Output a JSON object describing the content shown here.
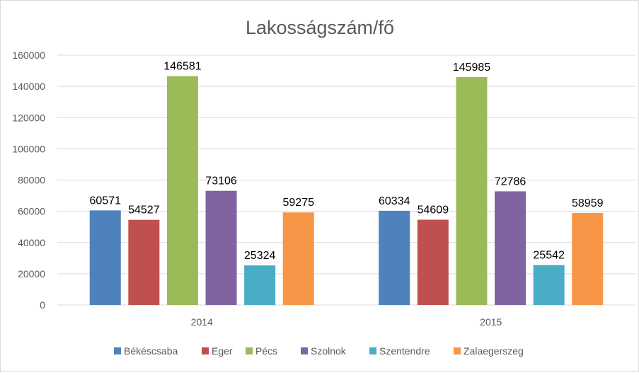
{
  "chart_data": {
    "type": "bar",
    "title": "Lakosságszám/fő",
    "xlabel": "",
    "ylabel": "",
    "categories": [
      "2014",
      "2015"
    ],
    "series": [
      {
        "name": "Békéscsaba",
        "color": "#4f81bd",
        "values": [
          60571,
          60334
        ]
      },
      {
        "name": "Eger",
        "color": "#c0504d",
        "values": [
          54527,
          54609
        ]
      },
      {
        "name": "Pécs",
        "color": "#9bbb59",
        "values": [
          146581,
          145985
        ]
      },
      {
        "name": "Szolnok",
        "color": "#8064a2",
        "values": [
          73106,
          72786
        ]
      },
      {
        "name": "Szentendre",
        "color": "#4bacc6",
        "values": [
          25324,
          25542
        ]
      },
      {
        "name": "Zalaegerszeg",
        "color": "#f79646",
        "values": [
          59275,
          58959
        ]
      }
    ],
    "ylim": [
      0,
      160000
    ],
    "yticks": [
      0,
      20000,
      40000,
      60000,
      80000,
      100000,
      120000,
      140000,
      160000
    ],
    "grid": true,
    "legend_position": "bottom",
    "data_labels": true
  }
}
